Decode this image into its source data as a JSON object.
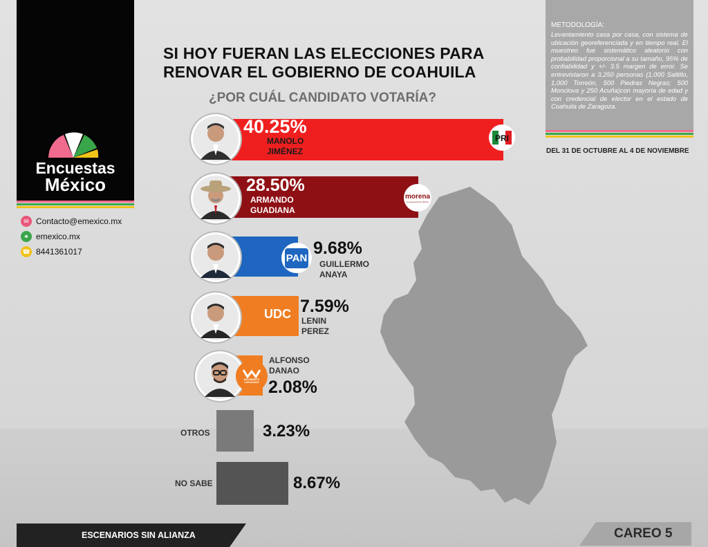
{
  "brand": {
    "line1": "Encuestas",
    "line2": "México"
  },
  "contacts": [
    {
      "icon": "email-icon",
      "text": "Contacto@emexico.mx",
      "color": "#e8567a"
    },
    {
      "icon": "web-icon",
      "text": "emexico.mx",
      "color": "#3aa64a"
    },
    {
      "icon": "phone-icon",
      "text": "8441361017",
      "color": "#f2c21a"
    }
  ],
  "title": {
    "line1": "SI HOY FUERAN LAS ELECCIONES PARA",
    "line2": "RENOVAR EL GOBIERNO DE COAHUILA",
    "question": "¿POR CUÁL CANDIDATO VOTARÍA?"
  },
  "methodology": {
    "title": "METODOLOGÍA:",
    "text": "Levantamiento casa por casa, con sistema de ubicación georeferenciada y en tiempo real. El muestreo fue sistemático aleatorio con probabilidad proporcional a su tamaño, 95% de confiabilidad y +/- 3.5 margen de error. Se entrevistaron a 3,250 personas (1,000 Saltillo, 1,000 Torreón, 500 Piedras Negras; 500 Monclova y 250 Acuña)con mayoría de edad y con credencial de elector en el estado de Coahuila de Zaragoza.",
    "dates": "DEL 31 DE OCTUBRE AL 4 DE NOVIEMBRE"
  },
  "chart_data": {
    "type": "bar",
    "title": "SI HOY FUERAN LAS ELECCIONES PARA RENOVAR EL GOBIERNO DE COAHUILA",
    "subtitle": "¿POR CUÁL CANDIDATO VOTARÍA?",
    "categories": [
      "MANOLO JIMÉNEZ",
      "ARMANDO GUADIANA",
      "GUILLERMO ANAYA",
      "LENIN PEREZ",
      "ALFONSO DANAO",
      "OTROS",
      "NO SABE"
    ],
    "values": [
      40.25,
      28.5,
      9.68,
      7.59,
      2.08,
      3.23,
      8.67
    ],
    "labels": [
      "40.25%",
      "28.50%",
      "9.68%",
      "7.59%",
      "2.08%",
      "3.23%",
      "8.67%"
    ],
    "parties": [
      "PRI",
      "morena",
      "PAN",
      "UDC",
      "MOVIMIENTO CIUDADANO",
      "",
      ""
    ],
    "colors": [
      "#f01f1f",
      "#8e1015",
      "#1e66bf",
      "#f07d21",
      "#f07d21",
      "#7a7a7a",
      "#545454"
    ]
  },
  "candidates": [
    {
      "pct": "40.25%",
      "name1": "MANOLO",
      "name2": "JIMÉNEZ",
      "party": "PRI"
    },
    {
      "pct": "28.50%",
      "name1": "ARMANDO",
      "name2": "GUADIANA",
      "party": "morena",
      "party_sub": "La esperanza de México"
    },
    {
      "pct": "9.68%",
      "name1": "GUILLERMO",
      "name2": "ANAYA",
      "party": "PAN"
    },
    {
      "pct": "7.59%",
      "name1": "LENIN",
      "name2": "PEREZ",
      "party": "UDC"
    },
    {
      "pct": "2.08%",
      "name1": "ALFONSO",
      "name2": "DANAO",
      "party": "MOVIMIENTO CIUDADANO"
    }
  ],
  "others": {
    "label": "OTROS",
    "pct": "3.23%"
  },
  "nosabe": {
    "label": "NO SABE",
    "pct": "8.67%"
  },
  "footer": {
    "left": "ESCENARIOS SIN ALIANZA",
    "right": "CAREO 5"
  }
}
